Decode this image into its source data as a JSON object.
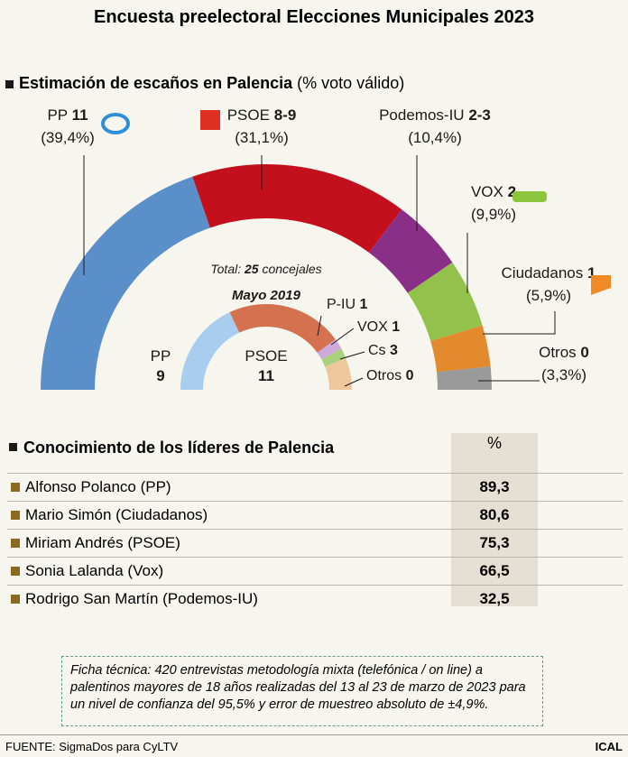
{
  "title": "Encuesta preelectoral Elecciones Municipales 2023",
  "chart_data": [
    {
      "type": "half-donut",
      "title": "Estimación de escaños en Palencia",
      "subtitle": "(% voto válido)",
      "categories": [
        "PP",
        "PSOE",
        "Podemos-IU",
        "VOX",
        "Ciudadanos",
        "Otros"
      ],
      "values": [
        39.4,
        31.1,
        10.4,
        9.9,
        5.9,
        3.3
      ],
      "value_labels": [
        "(39,4%)",
        "(31,1%)",
        "(10,4%)",
        "(9,9%)",
        "(5,9%)",
        "(3,3%)"
      ],
      "seat_labels": [
        "11",
        "8-9",
        "2-3",
        "2",
        "1",
        "0"
      ],
      "colors": [
        "#5b8fc9",
        "#c40f1c",
        "#8a2f88",
        "#93c24c",
        "#e48a2e",
        "#9a9a9a"
      ]
    },
    {
      "type": "half-donut",
      "title": "Mayo 2019",
      "total_label": "Total:",
      "total": 25,
      "total_unit": "concejales",
      "categories": [
        "PP",
        "PSOE",
        "P-IU",
        "VOX",
        "Cs",
        "Otros"
      ],
      "values": [
        9,
        11,
        1,
        1,
        3,
        0
      ],
      "colors": [
        "#a9cdef",
        "#d4714f",
        "#cda9dc",
        "#a9d07c",
        "#eec89c",
        "#9a9a9a"
      ]
    }
  ],
  "table": {
    "title": "Conocimiento de los líderes de Palencia",
    "column": "%",
    "rows": [
      [
        "Alfonso Polanco (PP)",
        "89,3"
      ],
      [
        "Mario Simón (Ciudadanos)",
        "80,6"
      ],
      [
        "Miriam Andrés (PSOE)",
        "75,3"
      ],
      [
        "Sonia Lalanda (Vox)",
        "66,5"
      ],
      [
        "Rodrigo San Martín (Podemos-IU)",
        "32,5"
      ]
    ]
  },
  "note": "Ficha técnica: 420 entrevistas metodología mixta (telefónica / on line) a palentinos mayores de 18 años realizadas del 13 al 23 de marzo de 2023 para un nivel de confianza del 95,5% y error de muestreo absoluto de ±4,9%.",
  "source": "FUENTE: SigmaDos para CyLTV",
  "brand": "ICAL"
}
